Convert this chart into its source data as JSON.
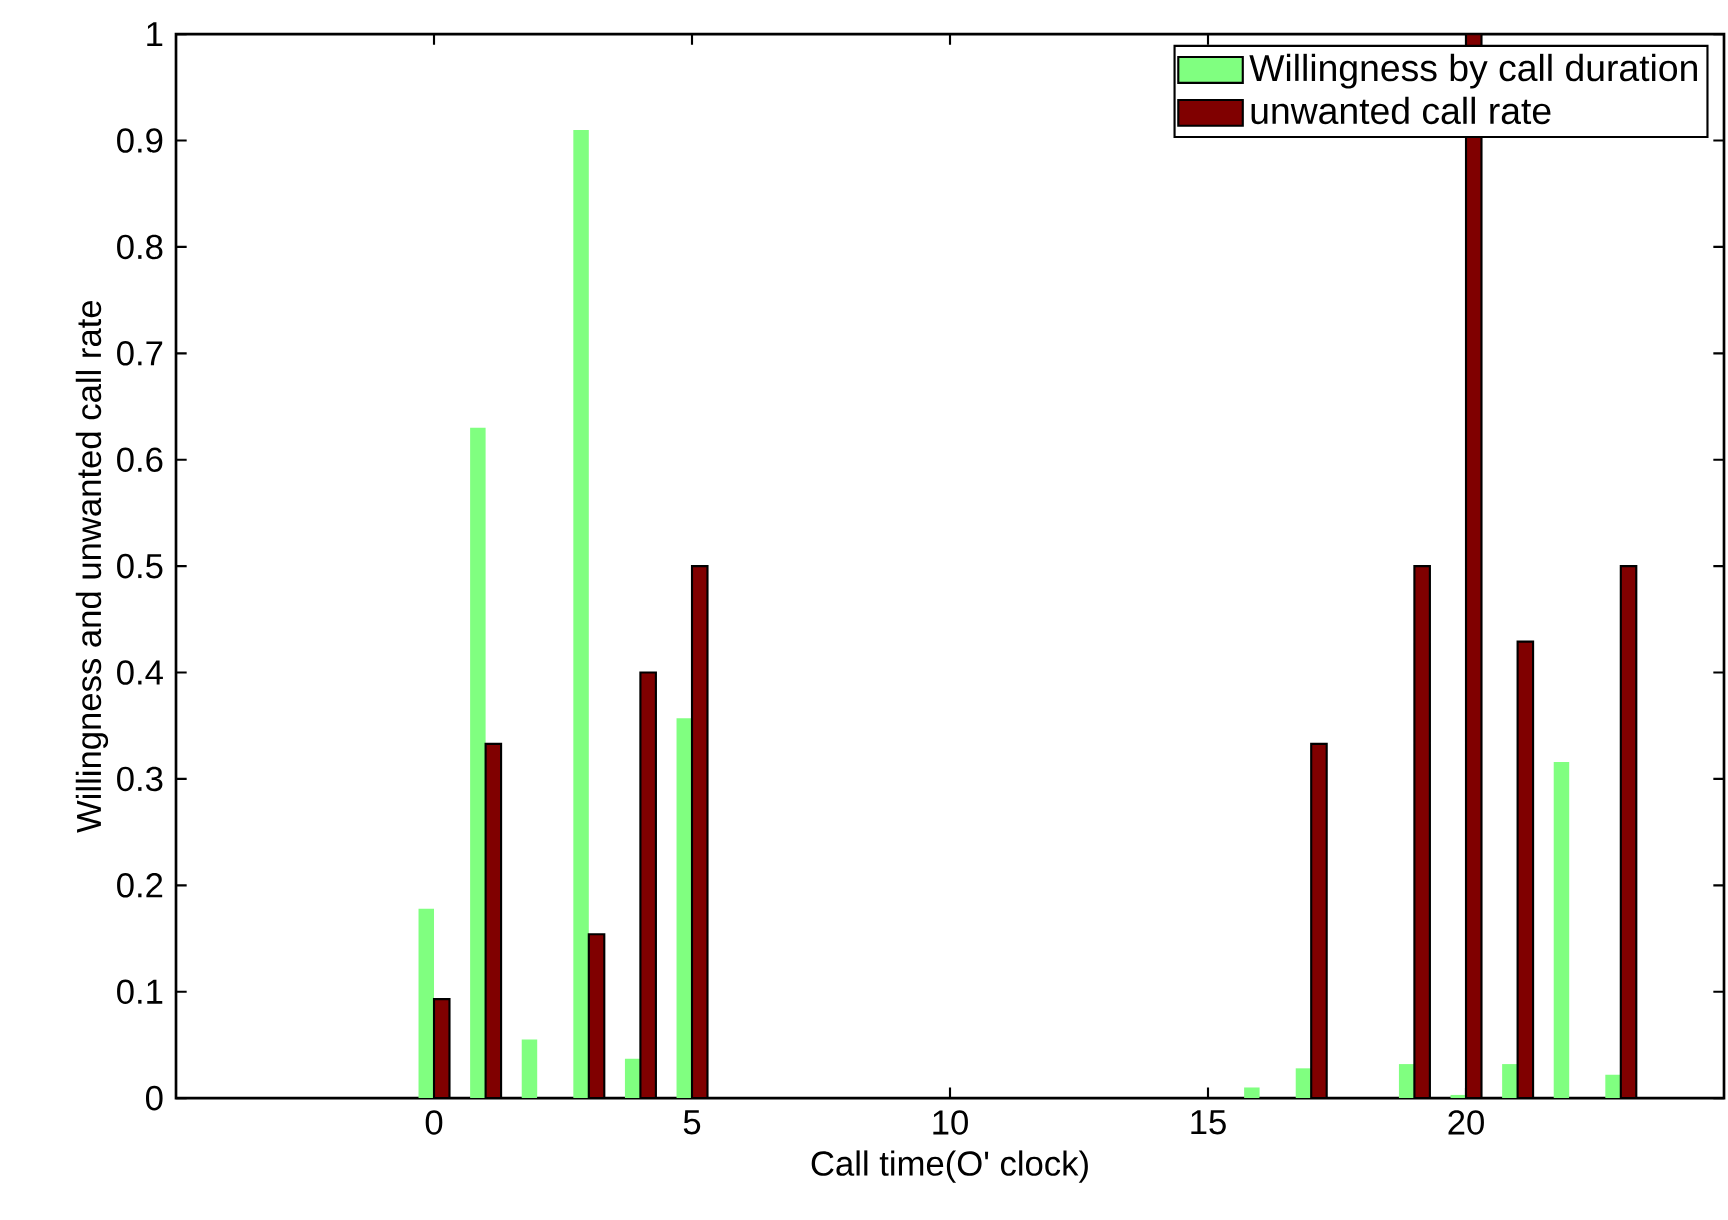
{
  "chart_data": {
    "type": "bar",
    "xlabel": "Call time(O' clock)",
    "ylabel": "Willingness and unwanted call rate",
    "x": [
      0,
      1,
      2,
      3,
      4,
      5,
      6,
      7,
      8,
      9,
      10,
      11,
      12,
      13,
      14,
      15,
      16,
      17,
      18,
      19,
      20,
      21,
      22,
      23
    ],
    "series": [
      {
        "name": "Willingness by call duration",
        "color": "#80ff80",
        "values": [
          0.178,
          0.63,
          0.055,
          0.91,
          0.037,
          0.357,
          0,
          0,
          0,
          0,
          0,
          0,
          0,
          0,
          0,
          0,
          0.01,
          0.028,
          0,
          0.032,
          0.003,
          0.032,
          0.316,
          0.022
        ]
      },
      {
        "name": "unwanted call rate",
        "color": "#800000",
        "values": [
          0.093,
          0.333,
          0,
          0.154,
          0.4,
          0.5,
          0,
          0,
          0,
          0,
          0,
          0,
          0,
          0,
          0,
          0,
          0,
          0.333,
          0,
          0.5,
          1.0,
          0.429,
          0,
          0.5
        ]
      }
    ],
    "xlim": [
      -5,
      25
    ],
    "xticks": [
      0,
      5,
      10,
      15,
      20
    ],
    "ylim": [
      0,
      1
    ],
    "yticks": [
      0,
      0.1,
      0.2,
      0.3,
      0.4,
      0.5,
      0.6,
      0.7,
      0.8,
      0.9,
      1
    ],
    "grid": false,
    "legend": "top right"
  }
}
